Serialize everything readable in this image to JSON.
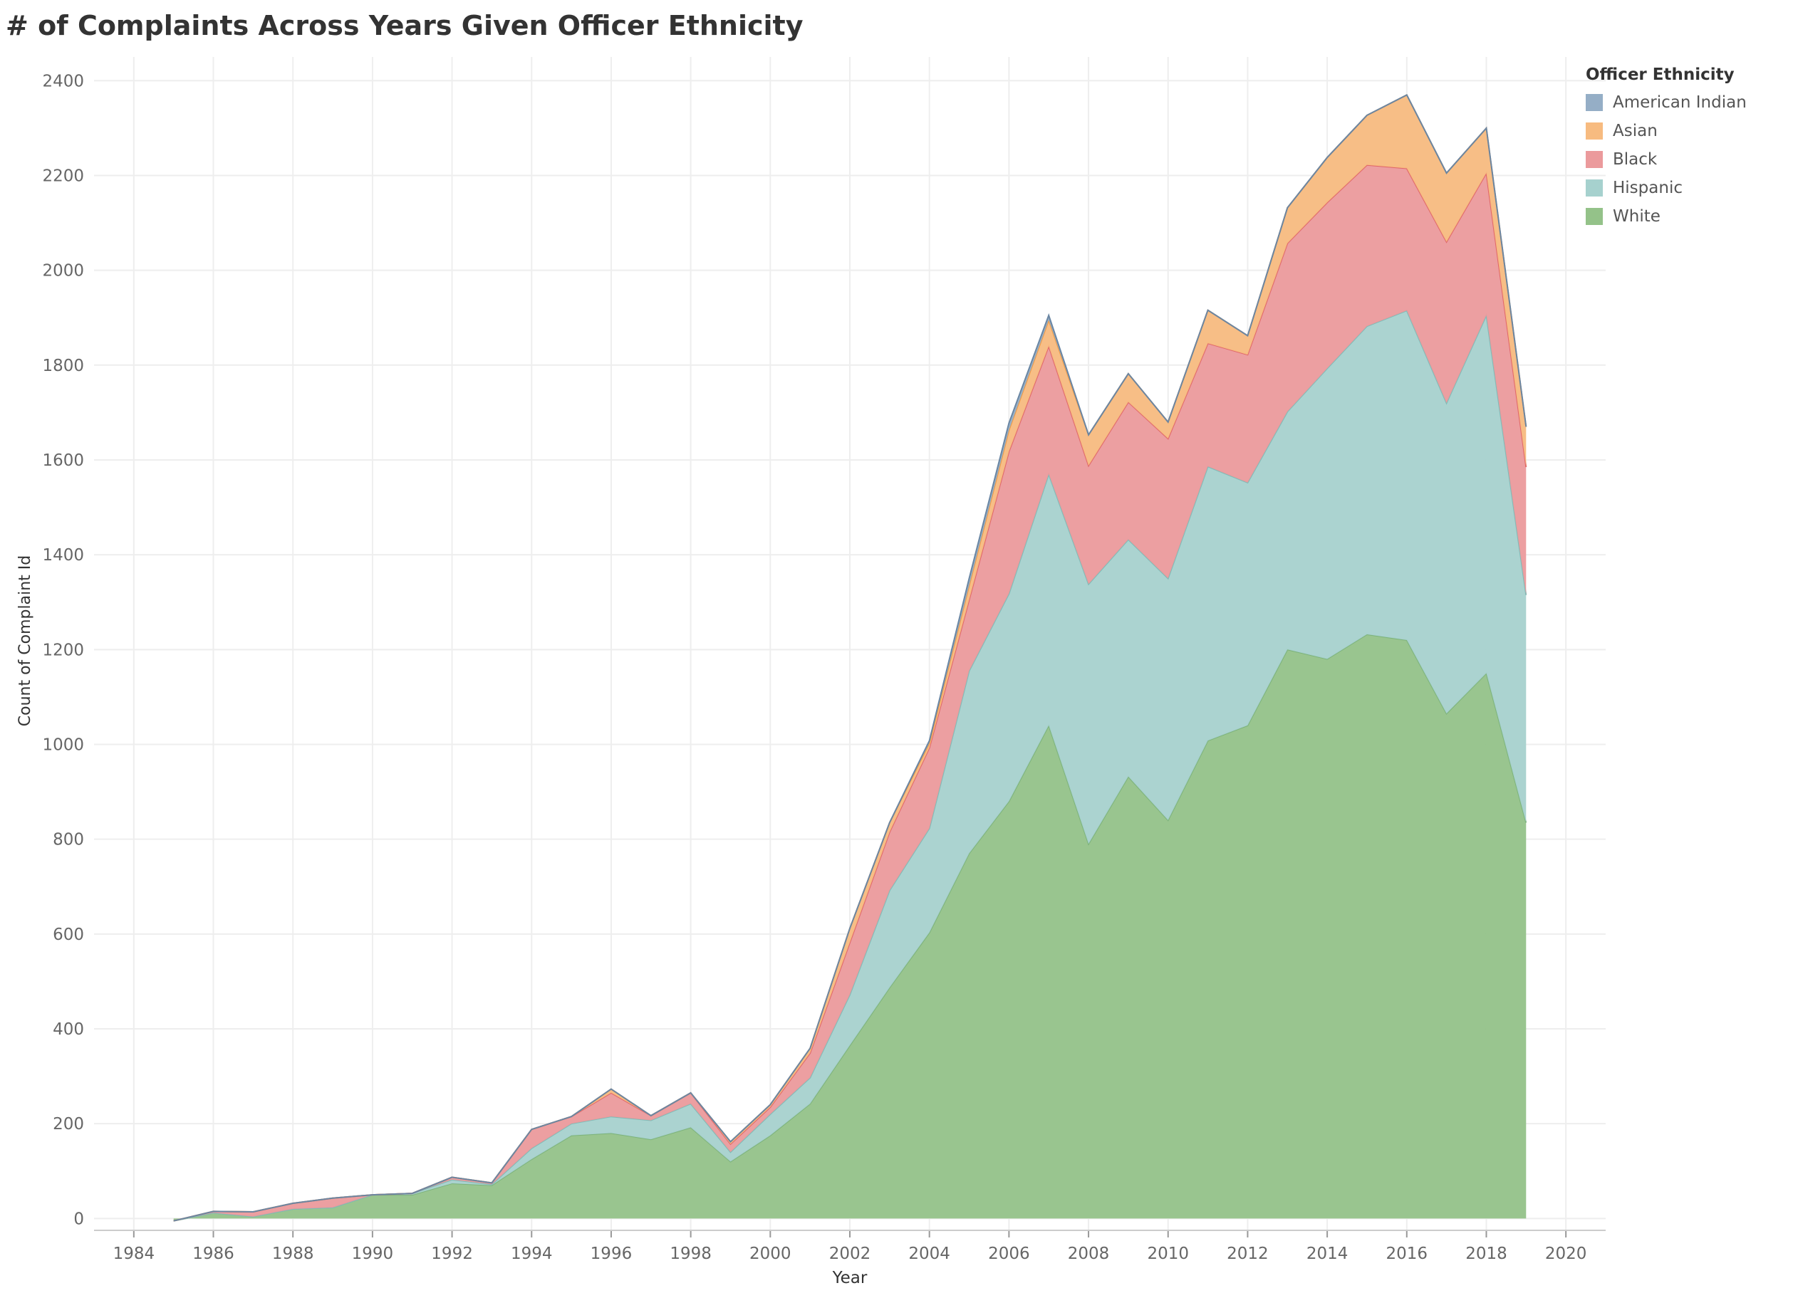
{
  "page": {
    "title": "# of Complaints Across Years Given Officer Ethnicity"
  },
  "legend": {
    "title": "Officer Ethnicity"
  },
  "chart_data": {
    "type": "area",
    "stacked": true,
    "title": "# of Complaints Across Years Given Officer Ethnicity",
    "xlabel": "Year",
    "ylabel": "Count of Complaint Id",
    "xlim": [
      1983,
      2021
    ],
    "ylim": [
      -25,
      2450
    ],
    "xticks": [
      1984,
      1986,
      1988,
      1990,
      1992,
      1994,
      1996,
      1998,
      2000,
      2002,
      2004,
      2006,
      2008,
      2010,
      2012,
      2014,
      2016,
      2018,
      2020
    ],
    "yticks": [
      0,
      200,
      400,
      600,
      800,
      1000,
      1200,
      1400,
      1600,
      1800,
      2000,
      2200,
      2400
    ],
    "grid": true,
    "legend_position": "top-right",
    "x": [
      1985,
      1986,
      1987,
      1988,
      1989,
      1990,
      1991,
      1992,
      1993,
      1994,
      1995,
      1996,
      1997,
      1998,
      1999,
      2000,
      2001,
      2002,
      2003,
      2004,
      2005,
      2006,
      2007,
      2008,
      2009,
      2010,
      2011,
      2012,
      2013,
      2014,
      2015,
      2016,
      2017,
      2018,
      2019
    ],
    "series": [
      {
        "name": "White",
        "color": "#94C289",
        "values": [
          -5,
          12,
          4,
          20,
          23,
          50,
          50,
          74,
          70,
          125,
          175,
          180,
          167,
          192,
          120,
          175,
          242,
          365,
          487,
          603,
          770,
          880,
          1040,
          790,
          932,
          840,
          1008,
          1040,
          1200,
          1180,
          1232,
          1220,
          1065,
          1150,
          835
        ]
      },
      {
        "name": "Hispanic",
        "color": "#A6D1CE",
        "values": [
          0,
          0,
          0,
          0,
          0,
          0,
          3,
          8,
          2,
          23,
          25,
          35,
          40,
          50,
          20,
          45,
          55,
          107,
          205,
          220,
          385,
          438,
          530,
          548,
          500,
          510,
          578,
          512,
          502,
          613,
          650,
          695,
          655,
          755,
          480
        ]
      },
      {
        "name": "Black",
        "color": "#EB9A9C",
        "values": [
          0,
          3,
          10,
          12,
          20,
          0,
          0,
          5,
          3,
          40,
          15,
          50,
          10,
          23,
          17,
          15,
          52,
          110,
          123,
          170,
          150,
          300,
          270,
          250,
          290,
          295,
          260,
          270,
          355,
          350,
          340,
          300,
          340,
          300,
          270
        ]
      },
      {
        "name": "Asian",
        "color": "#F7BB80",
        "values": [
          0,
          0,
          0,
          0,
          0,
          0,
          0,
          0,
          0,
          0,
          0,
          8,
          0,
          0,
          5,
          5,
          10,
          30,
          20,
          10,
          30,
          45,
          55,
          65,
          60,
          35,
          70,
          40,
          75,
          95,
          105,
          155,
          145,
          95,
          85
        ]
      },
      {
        "name": "American Indian",
        "color": "#95AEC6",
        "values": [
          0,
          0,
          0,
          0,
          0,
          0,
          0,
          0,
          0,
          0,
          0,
          0,
          0,
          0,
          0,
          0,
          0,
          0,
          0,
          5,
          15,
          15,
          10,
          0,
          0,
          0,
          0,
          0,
          0,
          0,
          0,
          0,
          0,
          0,
          0
        ]
      }
    ],
    "legend_order": [
      "American Indian",
      "Asian",
      "Black",
      "Hispanic",
      "White"
    ]
  }
}
